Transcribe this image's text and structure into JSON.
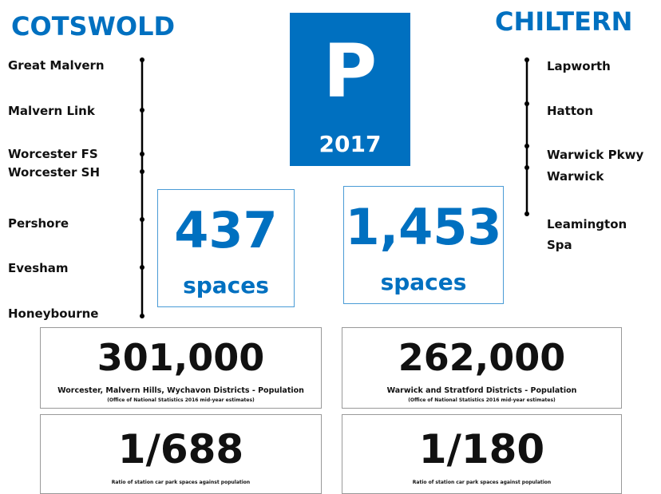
{
  "badge": {
    "letter": "P",
    "year": "2017"
  },
  "left": {
    "title": "COTSWOLD",
    "stations": [
      "Great Malvern",
      "Malvern Link",
      "Worcester FS",
      "Worcester SH",
      "Pershore",
      "Evesham",
      "Honeybourne"
    ],
    "spaces": "437",
    "spaces_label": "spaces",
    "population": "301,000",
    "population_label": "Worcester, Malvern Hills, Wychavon Districts - Population",
    "population_source": "(Office of National Statistics 2016 mid-year estimates)",
    "ratio": "1/688",
    "ratio_label": "Ratio of station car park spaces against population"
  },
  "right": {
    "title": "CHILTERN",
    "stations": [
      "Lapworth",
      "Hatton",
      "Warwick Pkwy",
      "Warwick",
      "Leamington",
      "Spa"
    ],
    "spaces": "1,453",
    "spaces_label": "spaces",
    "population": "262,000",
    "population_label": "Warwick and Stratford Districts - Population",
    "population_source": "(Office of National Statistics 2016 mid-year estimates)",
    "ratio": "1/180",
    "ratio_label": "Ratio of station car park spaces against population"
  }
}
